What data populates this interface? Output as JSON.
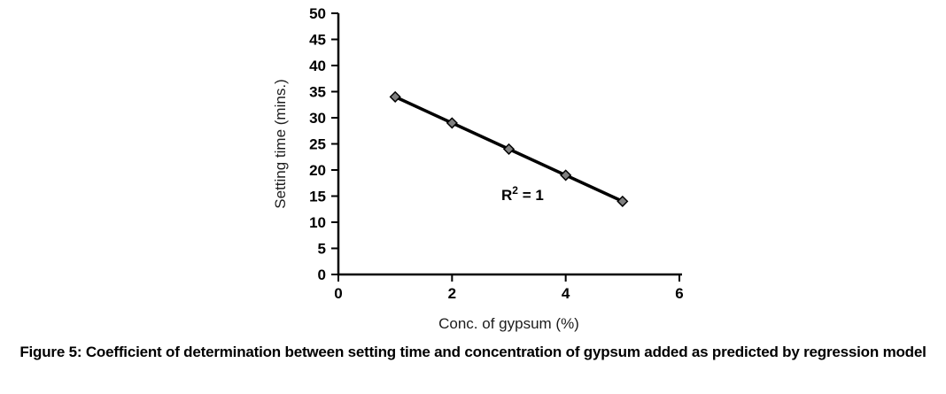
{
  "figure": {
    "caption": "Figure 5: Coefficient of determination between setting time and concentration of gypsum added as predicted by regression model"
  },
  "chart_data": {
    "type": "line",
    "series": [
      {
        "name": "setting-time-vs-gypsum",
        "x": [
          1,
          2,
          3,
          4,
          5
        ],
        "y": [
          34,
          29,
          24,
          19,
          14
        ]
      }
    ],
    "xlabel": "Conc. of gypsum (%)",
    "ylabel": "Setting time (mins.)",
    "xlim": [
      0,
      6
    ],
    "ylim": [
      0,
      50
    ],
    "xticks": [
      0,
      2,
      4,
      6
    ],
    "yticks": [
      0,
      5,
      10,
      15,
      20,
      25,
      30,
      35,
      40,
      45,
      50
    ],
    "annotation": {
      "base": "R",
      "sup": "2",
      "rest": " = 1"
    },
    "marker": "diamond",
    "grid": false,
    "legend": "none",
    "colors": {
      "line": "#000000",
      "marker_fill": "#808080",
      "marker_stroke": "#000000",
      "axis": "#000000",
      "tick_text": "#000000",
      "axis_label_text": "#1c1c1c"
    }
  }
}
